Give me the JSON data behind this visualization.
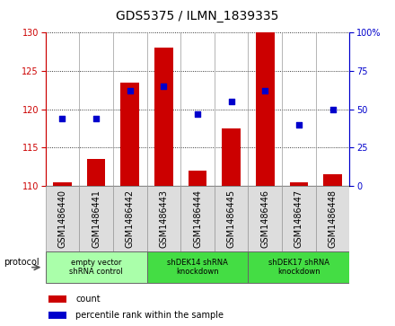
{
  "title": "GDS5375 / ILMN_1839335",
  "samples": [
    "GSM1486440",
    "GSM1486441",
    "GSM1486442",
    "GSM1486443",
    "GSM1486444",
    "GSM1486445",
    "GSM1486446",
    "GSM1486447",
    "GSM1486448"
  ],
  "count_values": [
    110.5,
    113.5,
    123.5,
    128.0,
    112.0,
    117.5,
    130.0,
    110.5,
    111.5
  ],
  "percentile_values": [
    44,
    44,
    62,
    65,
    47,
    55,
    62,
    40,
    50
  ],
  "ylim_left": [
    110,
    130
  ],
  "ylim_right": [
    0,
    100
  ],
  "yticks_left": [
    110,
    115,
    120,
    125,
    130
  ],
  "yticks_right": [
    0,
    25,
    50,
    75,
    100
  ],
  "bar_color": "#cc0000",
  "dot_color": "#0000cc",
  "bar_bottom": 110,
  "groups": [
    {
      "label": "empty vector\nshRNA control",
      "start": 0,
      "end": 3,
      "color": "#aaffaa"
    },
    {
      "label": "shDEK14 shRNA\nknockdown",
      "start": 3,
      "end": 6,
      "color": "#44dd44"
    },
    {
      "label": "shDEK17 shRNA\nknockdown",
      "start": 6,
      "end": 9,
      "color": "#44dd44"
    }
  ],
  "sample_box_color": "#dddddd",
  "protocol_label": "protocol",
  "legend_items": [
    {
      "label": "count",
      "color": "#cc0000"
    },
    {
      "label": "percentile rank within the sample",
      "color": "#0000cc"
    }
  ],
  "title_fontsize": 10,
  "tick_fontsize": 7,
  "label_fontsize": 7,
  "bar_width": 0.55,
  "left_tick_color": "#cc0000",
  "right_tick_color": "#0000cc"
}
